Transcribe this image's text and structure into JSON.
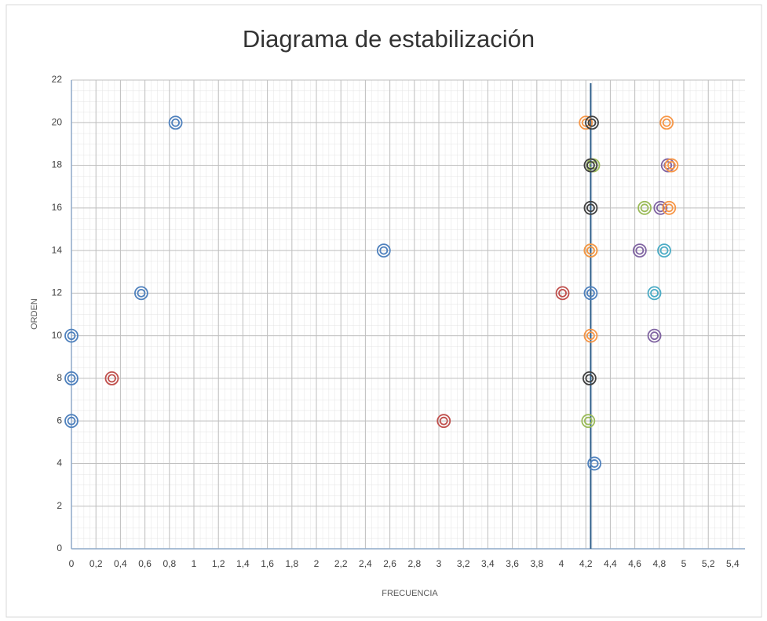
{
  "chart_data": {
    "type": "scatter",
    "title": "Diagrama de estabilización",
    "x_label": "FRECUENCIA",
    "y_label": "ORDEN",
    "xlim": [
      0,
      5.5
    ],
    "ylim": [
      0,
      22
    ],
    "xticks": [
      0,
      {
        "value": 0.2,
        "label": "0,2"
      },
      {
        "value": 0.4,
        "label": "0,4"
      },
      {
        "value": 0.6,
        "label": "0,6"
      },
      {
        "value": 0.8,
        "label": "0,8"
      },
      1,
      {
        "value": 1.2,
        "label": "1,2"
      },
      {
        "value": 1.4,
        "label": "1,4"
      },
      {
        "value": 1.6,
        "label": "1,6"
      },
      {
        "value": 1.8,
        "label": "1,8"
      },
      2,
      {
        "value": 2.2,
        "label": "2,2"
      },
      {
        "value": 2.4,
        "label": "2,4"
      },
      {
        "value": 2.6,
        "label": "2,6"
      },
      {
        "value": 2.8,
        "label": "2,8"
      },
      3,
      {
        "value": 3.2,
        "label": "3,2"
      },
      {
        "value": 3.4,
        "label": "3,4"
      },
      {
        "value": 3.6,
        "label": "3,6"
      },
      {
        "value": 3.8,
        "label": "3,8"
      },
      4,
      {
        "value": 4.2,
        "label": "4,2"
      },
      {
        "value": 4.4,
        "label": "4,4"
      },
      {
        "value": 4.6,
        "label": "4,6"
      },
      {
        "value": 4.8,
        "label": "4,8"
      },
      5,
      {
        "value": 5.2,
        "label": "5,2"
      },
      {
        "value": 5.4,
        "label": "5,4"
      }
    ],
    "yticks": [
      0,
      2,
      4,
      6,
      8,
      10,
      12,
      14,
      16,
      18,
      20,
      22
    ],
    "grid": true,
    "reference_line": {
      "x": 4.24,
      "color": "#2e5f8a"
    },
    "series": [
      {
        "color": "#4f81bd",
        "x": [
          0.85,
          2.55,
          0.57,
          0,
          0,
          0,
          4.27,
          4.24
        ],
        "values": [
          20,
          14,
          12,
          10,
          8,
          6,
          4,
          12
        ]
      },
      {
        "color": "#c0504d",
        "x": [
          0.33,
          3.04,
          4.01
        ],
        "values": [
          8,
          6,
          12
        ]
      },
      {
        "color": "#9bbb59",
        "x": [
          4.22,
          4.68,
          4.26,
          4.24
        ],
        "values": [
          6,
          16,
          18,
          14
        ]
      },
      {
        "color": "#8064a2",
        "x": [
          4.64,
          4.76,
          4.81,
          4.87
        ],
        "values": [
          14,
          10,
          16,
          18
        ]
      },
      {
        "color": "#4bacc6",
        "x": [
          4.76,
          4.84
        ],
        "values": [
          12,
          14
        ]
      },
      {
        "color": "#f79646",
        "x": [
          4.86,
          4.88,
          4.9,
          4.2,
          4.24,
          4.24
        ],
        "values": [
          20,
          16,
          18,
          20,
          10,
          14
        ]
      },
      {
        "color": "#404040",
        "x": [
          4.23,
          4.24,
          4.24,
          4.25
        ],
        "values": [
          8,
          18,
          16,
          20
        ]
      }
    ]
  }
}
